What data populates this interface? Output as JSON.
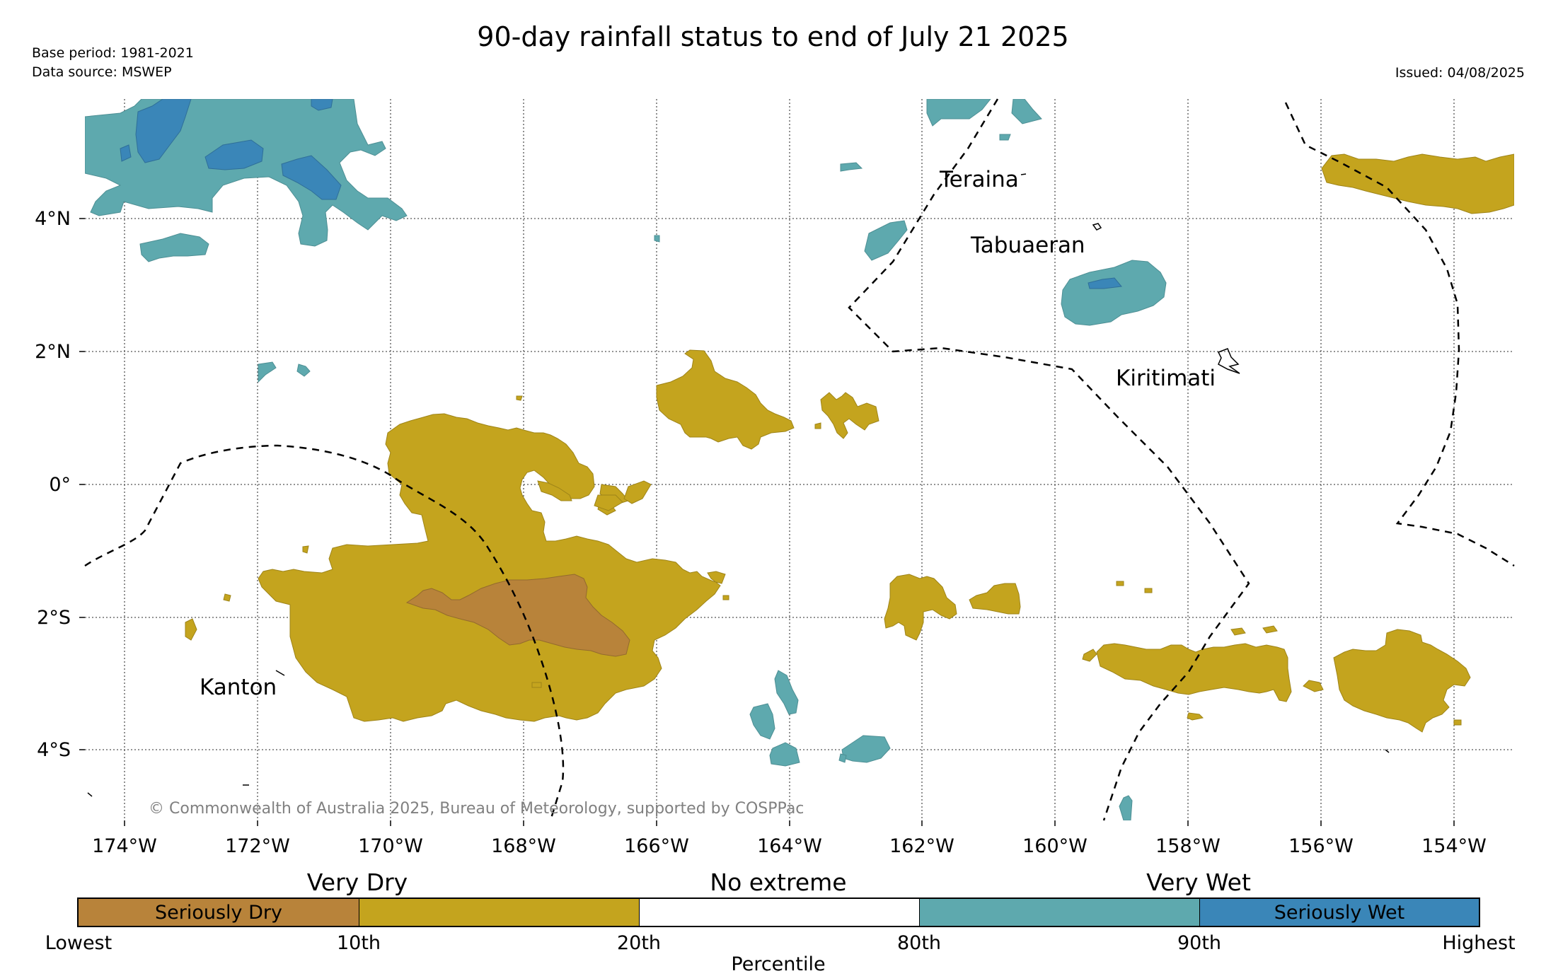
{
  "title": "90-day rainfall status to end of July 21 2025",
  "base_period": "Base period: 1981-2021",
  "data_source": "Data source: MSWEP",
  "issued": "Issued: 04/08/2025",
  "copyright": "© Commonwealth of Australia 2025, Bureau of Meteorology, supported by COSPPac",
  "map": {
    "lon_range": [
      -174.6,
      -152.9
    ],
    "lat_range": [
      -5.0,
      5.8
    ],
    "lon_ticks": [
      "174°W",
      "172°W",
      "170°W",
      "168°W",
      "166°W",
      "164°W",
      "162°W",
      "160°W",
      "158°W",
      "156°W",
      "154°W"
    ],
    "lat_ticks": [
      "4°N",
      "2°N",
      "0°",
      "2°S",
      "4°S"
    ],
    "places": [
      "Teraina",
      "Tabuaeran",
      "Kiritimati",
      "Kanton"
    ],
    "colors": {
      "seriously_dry": "#b8833a",
      "very_dry": "#c4a41e",
      "no_extreme": "#ffffff",
      "very_wet": "#5ea9ae",
      "seriously_wet": "#3a86b8"
    }
  },
  "legend": {
    "group_labels": [
      "Very Dry",
      "No extreme",
      "Very Wet"
    ],
    "box_labels": [
      "Seriously Dry",
      "",
      "",
      "",
      "Seriously Wet"
    ],
    "ticks": [
      "Lowest",
      "10th",
      "20th",
      "80th",
      "90th",
      "Highest"
    ],
    "axis_label": "Percentile"
  }
}
